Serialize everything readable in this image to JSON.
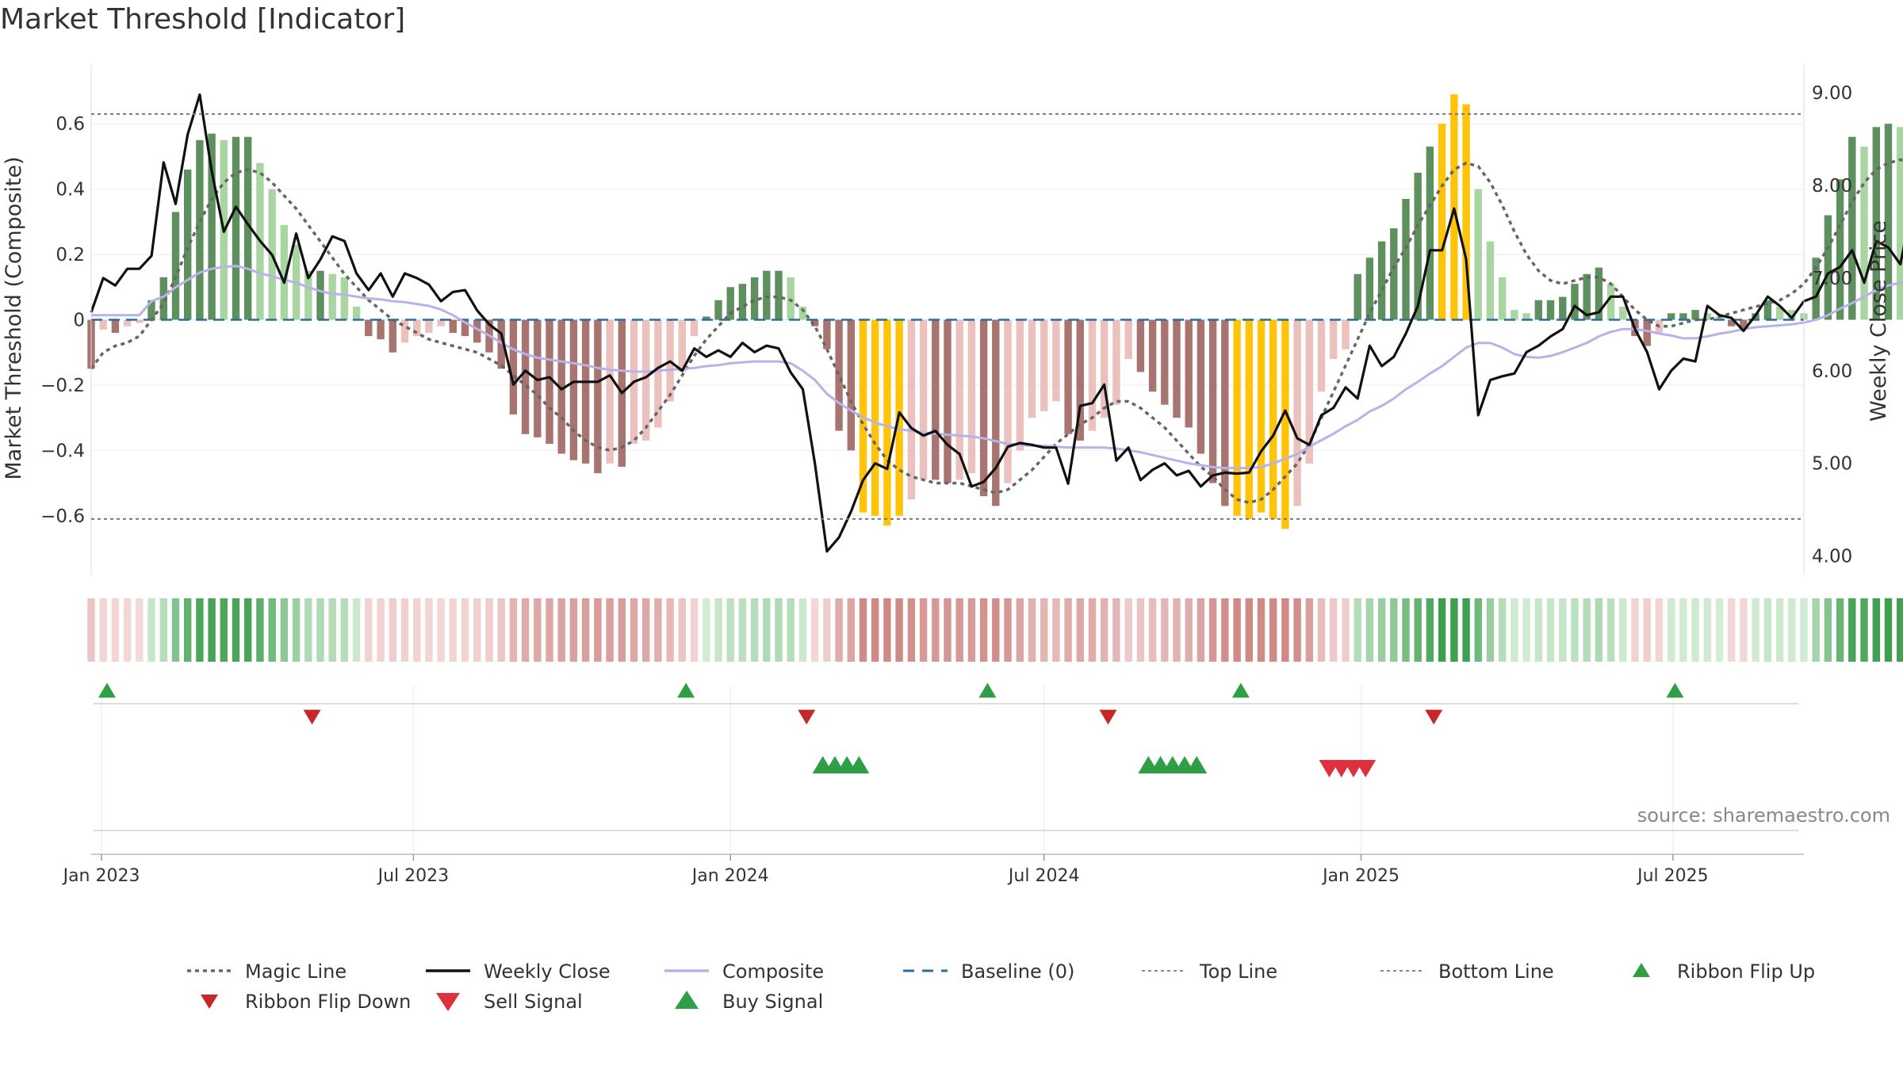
{
  "chart_data": {
    "type": "bar",
    "title": "Market Threshold [Indicator]",
    "source": "source: sharemaestro.com",
    "ylabel": "Market Threshold (Composite)",
    "y2label": "Weekly Close Price",
    "ylim": [
      -0.78,
      0.78
    ],
    "y2lim": [
      3.8,
      9.3
    ],
    "yticks": [
      0.6,
      0.4,
      0.2,
      0,
      -0.2,
      -0.4,
      -0.6
    ],
    "ytick_labels": [
      "0.6",
      "0.4",
      "0.2",
      "0",
      "−0.2",
      "−0.4",
      "−0.6"
    ],
    "y2ticks": [
      9.0,
      8.0,
      7.0,
      6.0,
      5.0,
      4.0
    ],
    "y2tick_labels": [
      "9.00",
      "8.00",
      "7.00",
      "6.00",
      "5.00",
      "4.00"
    ],
    "x_range": [
      "2022-12-26",
      "2025-09-15"
    ],
    "xticks": [
      "2023-01-01",
      "2023-07-01",
      "2024-01-01",
      "2024-07-01",
      "2025-01-01",
      "2025-07-01"
    ],
    "xtick_labels": [
      "Jan 2023",
      "Jul 2023",
      "Jan 2024",
      "Jul 2024",
      "Jan 2025",
      "Jul 2025"
    ],
    "top_line": 0.63,
    "bottom_line": -0.61,
    "colors": {
      "strong_up": "#5e8f5e",
      "weak_up": "#a8d5a2",
      "strong_down": "#a77470",
      "weak_down": "#ebc1bd",
      "extreme": "#ffc40a",
      "weekly_close": "#111111",
      "composite": "#b9b2e8",
      "magic_line": "#666666",
      "baseline": "#2b6d9e",
      "flip_up": "#2f9e44",
      "flip_down": "#c62828",
      "buy": "#2f9e44",
      "sell": "#e0303e"
    },
    "week_start": "2022-12-26",
    "composite_series": [
      -0.15,
      -0.03,
      -0.04,
      -0.02,
      -0.01,
      0.06,
      0.13,
      0.33,
      0.46,
      0.55,
      0.57,
      0.55,
      0.56,
      0.56,
      0.48,
      0.4,
      0.29,
      0.23,
      0.15,
      0.15,
      0.14,
      0.13,
      0.04,
      -0.05,
      -0.06,
      -0.1,
      -0.07,
      -0.05,
      -0.04,
      -0.02,
      -0.04,
      -0.05,
      -0.07,
      -0.1,
      -0.15,
      -0.29,
      -0.35,
      -0.36,
      -0.38,
      -0.41,
      -0.43,
      -0.44,
      -0.47,
      -0.44,
      -0.45,
      -0.38,
      -0.37,
      -0.33,
      -0.25,
      -0.16,
      -0.05,
      0.01,
      0.06,
      0.1,
      0.11,
      0.13,
      0.15,
      0.15,
      0.13,
      0.04,
      -0.02,
      -0.09,
      -0.34,
      -0.4,
      -0.59,
      -0.6,
      -0.63,
      -0.6,
      -0.55,
      -0.49,
      -0.49,
      -0.5,
      -0.49,
      -0.47,
      -0.54,
      -0.57,
      -0.5,
      -0.4,
      -0.3,
      -0.28,
      -0.25,
      -0.35,
      -0.37,
      -0.34,
      -0.3,
      -0.26,
      -0.12,
      -0.16,
      -0.22,
      -0.26,
      -0.3,
      -0.33,
      -0.41,
      -0.5,
      -0.57,
      -0.6,
      -0.61,
      -0.59,
      -0.61,
      -0.64,
      -0.57,
      -0.44,
      -0.22,
      -0.12,
      -0.09,
      0.14,
      0.19,
      0.24,
      0.28,
      0.37,
      0.45,
      0.53,
      0.6,
      0.69,
      0.66,
      0.4,
      0.24,
      0.13,
      0.03,
      0.02,
      0.06,
      0.06,
      0.07,
      0.11,
      0.14,
      0.16,
      0.11,
      0.04,
      -0.05,
      -0.08,
      -0.04,
      0.02,
      0.02,
      0.03,
      0.02,
      0.01,
      -0.02,
      -0.03,
      0.02,
      0.06,
      0.04,
      0.03,
      0.02,
      0.19,
      0.32,
      0.43,
      0.56,
      0.53,
      0.59,
      0.6,
      0.59,
      0.51,
      0.44,
      0.34,
      0.3,
      0.27
    ],
    "close_series": [
      6.63,
      7.0,
      6.92,
      7.1,
      7.1,
      7.24,
      8.25,
      7.8,
      8.55,
      8.98,
      8.15,
      7.5,
      7.77,
      7.58,
      7.4,
      7.25,
      6.95,
      7.48,
      7.0,
      7.2,
      7.45,
      7.4,
      7.05,
      6.87,
      7.05,
      6.8,
      7.05,
      7.0,
      6.93,
      6.75,
      6.85,
      6.87,
      6.65,
      6.5,
      6.4,
      5.85,
      6.0,
      5.9,
      5.93,
      5.8,
      5.88,
      5.88,
      5.88,
      5.95,
      5.76,
      5.88,
      5.93,
      6.03,
      6.1,
      6.0,
      6.24,
      6.15,
      6.22,
      6.15,
      6.3,
      6.2,
      6.27,
      6.24,
      5.98,
      5.8,
      5.0,
      4.05,
      4.2,
      4.48,
      4.82,
      5.0,
      4.94,
      5.55,
      5.38,
      5.3,
      5.35,
      5.2,
      5.1,
      4.75,
      4.8,
      4.95,
      5.18,
      5.22,
      5.2,
      5.17,
      5.17,
      4.78,
      5.62,
      5.65,
      5.85,
      5.03,
      5.17,
      4.82,
      4.93,
      5.0,
      4.87,
      4.92,
      4.75,
      4.87,
      4.9,
      4.89,
      4.9,
      5.13,
      5.3,
      5.57,
      5.27,
      5.2,
      5.52,
      5.6,
      5.82,
      5.7,
      6.27,
      6.05,
      6.15,
      6.4,
      6.7,
      7.3,
      7.3,
      7.75,
      7.2,
      5.52,
      5.9,
      5.94,
      5.97,
      6.2,
      6.27,
      6.37,
      6.45,
      6.7,
      6.6,
      6.63,
      6.8,
      6.8,
      6.45,
      6.2,
      5.8,
      6.0,
      6.13,
      6.1,
      6.7,
      6.6,
      6.57,
      6.43,
      6.6,
      6.8,
      6.7,
      6.57,
      6.75,
      6.8,
      7.05,
      7.12,
      7.3,
      6.95,
      7.4,
      7.33,
      7.15,
      7.8,
      7.78,
      7.33,
      7.48,
      7.45,
      7.4,
      7.4,
      7.37
    ],
    "composite_line_series": [
      6.6,
      6.6,
      6.6,
      6.6,
      6.6,
      6.75,
      6.8,
      6.9,
      6.98,
      7.06,
      7.1,
      7.12,
      7.13,
      7.1,
      7.05,
      7.02,
      6.98,
      6.95,
      6.9,
      6.86,
      6.83,
      6.82,
      6.8,
      6.78,
      6.77,
      6.75,
      6.74,
      6.72,
      6.7,
      6.66,
      6.6,
      6.52,
      6.45,
      6.38,
      6.3,
      6.23,
      6.18,
      6.14,
      6.12,
      6.1,
      6.08,
      6.06,
      6.03,
      6.01,
      6.0,
      5.99,
      5.99,
      6.0,
      6.01,
      6.02,
      6.03,
      6.05,
      6.06,
      6.08,
      6.09,
      6.1,
      6.1,
      6.1,
      6.08,
      6.0,
      5.9,
      5.75,
      5.65,
      5.57,
      5.5,
      5.44,
      5.4,
      5.37,
      5.35,
      5.33,
      5.32,
      5.31,
      5.3,
      5.29,
      5.27,
      5.24,
      5.21,
      5.2,
      5.19,
      5.19,
      5.18,
      5.17,
      5.17,
      5.17,
      5.17,
      5.16,
      5.14,
      5.12,
      5.09,
      5.06,
      5.03,
      5.0,
      4.98,
      4.96,
      4.95,
      4.95,
      4.95,
      4.96,
      5.0,
      5.05,
      5.1,
      5.18,
      5.25,
      5.32,
      5.4,
      5.47,
      5.56,
      5.62,
      5.7,
      5.8,
      5.88,
      5.97,
      6.05,
      6.15,
      6.25,
      6.3,
      6.3,
      6.25,
      6.18,
      6.15,
      6.14,
      6.16,
      6.2,
      6.25,
      6.3,
      6.37,
      6.42,
      6.45,
      6.45,
      6.43,
      6.4,
      6.38,
      6.35,
      6.35,
      6.37,
      6.4,
      6.42,
      6.45,
      6.47,
      6.48,
      6.49,
      6.5,
      6.52,
      6.55,
      6.6,
      6.67,
      6.73,
      6.8,
      6.87,
      6.92,
      6.95,
      6.96,
      6.96,
      6.96,
      6.96,
      6.96
    ],
    "magic_line_series": [
      -0.15,
      -0.1,
      -0.08,
      -0.07,
      -0.05,
      0.0,
      0.05,
      0.13,
      0.22,
      0.3,
      0.37,
      0.42,
      0.45,
      0.46,
      0.45,
      0.42,
      0.38,
      0.34,
      0.29,
      0.24,
      0.19,
      0.14,
      0.1,
      0.06,
      0.03,
      0.0,
      -0.02,
      -0.04,
      -0.06,
      -0.07,
      -0.08,
      -0.09,
      -0.1,
      -0.12,
      -0.14,
      -0.17,
      -0.2,
      -0.23,
      -0.27,
      -0.3,
      -0.34,
      -0.37,
      -0.39,
      -0.4,
      -0.39,
      -0.37,
      -0.33,
      -0.28,
      -0.23,
      -0.17,
      -0.11,
      -0.06,
      -0.02,
      0.02,
      0.04,
      0.06,
      0.07,
      0.07,
      0.06,
      0.03,
      -0.02,
      -0.09,
      -0.17,
      -0.25,
      -0.32,
      -0.38,
      -0.43,
      -0.46,
      -0.48,
      -0.49,
      -0.5,
      -0.5,
      -0.5,
      -0.51,
      -0.52,
      -0.53,
      -0.52,
      -0.49,
      -0.46,
      -0.42,
      -0.38,
      -0.35,
      -0.32,
      -0.3,
      -0.27,
      -0.25,
      -0.25,
      -0.27,
      -0.3,
      -0.33,
      -0.37,
      -0.41,
      -0.45,
      -0.48,
      -0.52,
      -0.55,
      -0.56,
      -0.55,
      -0.52,
      -0.48,
      -0.44,
      -0.38,
      -0.3,
      -0.22,
      -0.14,
      -0.06,
      0.02,
      0.09,
      0.16,
      0.22,
      0.29,
      0.35,
      0.41,
      0.46,
      0.48,
      0.47,
      0.42,
      0.35,
      0.27,
      0.2,
      0.15,
      0.12,
      0.11,
      0.12,
      0.13,
      0.13,
      0.11,
      0.07,
      0.03,
      0.0,
      -0.02,
      -0.02,
      -0.01,
      0.0,
      0.0,
      0.01,
      0.02,
      0.03,
      0.04,
      0.05,
      0.06,
      0.08,
      0.11,
      0.16,
      0.22,
      0.29,
      0.36,
      0.42,
      0.46,
      0.48,
      0.49,
      0.48,
      0.45,
      0.41,
      0.38,
      0.35,
      0.33
    ],
    "ribbon_flip_up": [
      "2022-12-26",
      "2023-11-27",
      "2024-05-20",
      "2024-10-14",
      "2025-06-23"
    ],
    "ribbon_flip_down": [
      "2023-04-24",
      "2024-02-05",
      "2024-07-29",
      "2025-02-03"
    ],
    "buy_signals": [
      "2024-02-19",
      "2024-02-26",
      "2024-03-04",
      "2024-03-11",
      "2024-08-26",
      "2024-09-02",
      "2024-09-09",
      "2024-09-16",
      "2024-09-23"
    ],
    "sell_signals": [
      "2024-12-09",
      "2024-12-16",
      "2024-12-23",
      "2024-12-30"
    ],
    "legend": {
      "magic_line": "Magic Line",
      "weekly_close": "Weekly Close",
      "composite": "Composite",
      "baseline": "Baseline (0)",
      "top_line": "Top Line",
      "bottom_line": "Bottom Line",
      "ribbon_flip_up": "Ribbon Flip Up",
      "ribbon_flip_down": "Ribbon Flip Down",
      "sell_signal": "Sell Signal",
      "buy_signal": "Buy Signal"
    }
  }
}
